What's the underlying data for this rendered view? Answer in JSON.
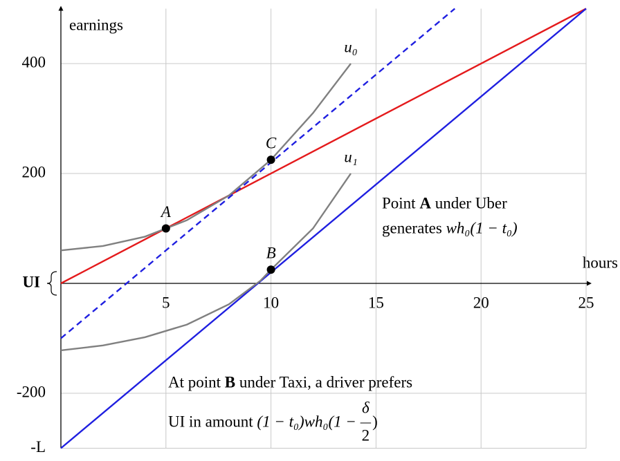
{
  "chart_data": {
    "type": "line",
    "xlabel": "hours",
    "ylabel": "earnings",
    "xlim": [
      0,
      25
    ],
    "ylim": [
      -300,
      500
    ],
    "xticks": [
      5,
      10,
      15,
      20,
      25
    ],
    "yticks": [
      {
        "value": -300,
        "label": "-L"
      },
      -200,
      200,
      400
    ],
    "grid": true,
    "series": [
      {
        "color": "#e41a1c",
        "style": "solid",
        "x": [
          0,
          25
        ],
        "values": [
          0,
          500
        ]
      },
      {
        "color": "#1f1fe0",
        "style": "solid",
        "x": [
          0,
          25
        ],
        "values": [
          -300,
          500
        ]
      },
      {
        "color": "#1f1fe0",
        "style": "dashed",
        "x": [
          0,
          18.75
        ],
        "values": [
          -100,
          500
        ]
      },
      {
        "name": "u₀",
        "color": "#808080",
        "style": "solid",
        "x": [
          0,
          2,
          4,
          5,
          6,
          8,
          10,
          12,
          13.8
        ],
        "values": [
          60,
          68,
          85,
          100,
          115,
          160,
          225,
          310,
          400
        ]
      },
      {
        "name": "u₁",
        "color": "#808080",
        "style": "solid",
        "x": [
          0,
          2,
          4,
          6,
          8,
          9.5,
          10,
          12,
          13.8
        ],
        "values": [
          -122,
          -113,
          -98,
          -75,
          -38,
          5,
          25,
          100,
          200
        ]
      }
    ],
    "points": [
      {
        "label": "A",
        "x": 5,
        "y": 100
      },
      {
        "label": "B",
        "x": 10,
        "y": 25
      },
      {
        "label": "C",
        "x": 10,
        "y": 225
      }
    ],
    "brace_label": "UI",
    "annotations": [
      {
        "lines": [
          [
            {
              "text": "Point "
            },
            {
              "text": "A",
              "bold": true
            },
            {
              "text": " under Uber"
            }
          ],
          [
            {
              "text": "generates "
            },
            {
              "text": "wh₀(1 − t₀)",
              "italic": true
            }
          ]
        ]
      },
      {
        "lines": [
          [
            {
              "text": "At point "
            },
            {
              "text": "B",
              "bold": true
            },
            {
              "text": " under Taxi, a driver prefers"
            }
          ],
          [
            {
              "text": "UI in amount "
            },
            {
              "text": "(1 − t₀)wh₀(1 − ",
              "italic": true
            },
            {
              "numerator": "δ",
              "denominator": "2"
            },
            {
              "text": ")"
            }
          ]
        ]
      }
    ]
  }
}
